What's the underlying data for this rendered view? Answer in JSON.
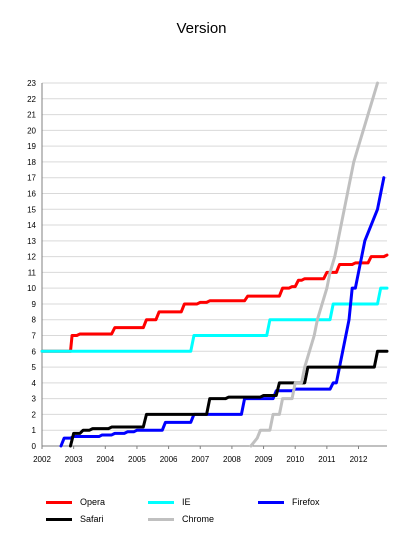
{
  "chart_data": {
    "type": "line",
    "title": "Version",
    "xlabel": "",
    "ylabel": "",
    "xlim": [
      2002,
      2012.9
    ],
    "ylim": [
      0,
      23
    ],
    "x_ticks": [
      "2002",
      "2003",
      "2004",
      "2005",
      "2006",
      "2007",
      "2008",
      "2009",
      "2010",
      "2011",
      "2012"
    ],
    "y_ticks": [
      0,
      1,
      2,
      3,
      4,
      5,
      6,
      7,
      8,
      9,
      10,
      11,
      12,
      13,
      14,
      15,
      16,
      17,
      18,
      19,
      20,
      21,
      22,
      23
    ],
    "grid": "horizontal",
    "legend_position": "bottom",
    "series": [
      {
        "name": "Opera",
        "color": "#ff0000",
        "points": [
          [
            2002.0,
            6.0
          ],
          [
            2002.9,
            6.0
          ],
          [
            2002.95,
            7.0
          ],
          [
            2003.1,
            7.0
          ],
          [
            2003.2,
            7.1
          ],
          [
            2004.2,
            7.1
          ],
          [
            2004.3,
            7.5
          ],
          [
            2005.2,
            7.5
          ],
          [
            2005.3,
            8.0
          ],
          [
            2005.6,
            8.0
          ],
          [
            2005.7,
            8.5
          ],
          [
            2006.4,
            8.5
          ],
          [
            2006.5,
            9.0
          ],
          [
            2006.9,
            9.0
          ],
          [
            2007.0,
            9.1
          ],
          [
            2007.2,
            9.1
          ],
          [
            2007.3,
            9.2
          ],
          [
            2008.4,
            9.2
          ],
          [
            2008.5,
            9.5
          ],
          [
            2009.5,
            9.5
          ],
          [
            2009.6,
            10.0
          ],
          [
            2009.8,
            10.0
          ],
          [
            2009.9,
            10.1
          ],
          [
            2010.0,
            10.1
          ],
          [
            2010.1,
            10.5
          ],
          [
            2010.2,
            10.5
          ],
          [
            2010.3,
            10.6
          ],
          [
            2010.9,
            10.6
          ],
          [
            2011.0,
            11.0
          ],
          [
            2011.3,
            11.0
          ],
          [
            2011.4,
            11.5
          ],
          [
            2011.8,
            11.5
          ],
          [
            2011.9,
            11.6
          ],
          [
            2012.3,
            11.6
          ],
          [
            2012.4,
            12.0
          ],
          [
            2012.8,
            12.0
          ],
          [
            2012.9,
            12.1
          ]
        ]
      },
      {
        "name": "IE",
        "color": "#00ffff",
        "points": [
          [
            2002.0,
            6.0
          ],
          [
            2006.7,
            6.0
          ],
          [
            2006.8,
            7.0
          ],
          [
            2009.1,
            7.0
          ],
          [
            2009.2,
            8.0
          ],
          [
            2011.1,
            8.0
          ],
          [
            2011.2,
            9.0
          ],
          [
            2012.6,
            9.0
          ],
          [
            2012.7,
            10.0
          ],
          [
            2012.9,
            10.0
          ]
        ]
      },
      {
        "name": "Firefox",
        "color": "#0000ff",
        "points": [
          [
            2002.6,
            0.0
          ],
          [
            2002.7,
            0.5
          ],
          [
            2002.9,
            0.5
          ],
          [
            2003.0,
            0.6
          ],
          [
            2003.8,
            0.6
          ],
          [
            2003.9,
            0.7
          ],
          [
            2004.2,
            0.7
          ],
          [
            2004.3,
            0.8
          ],
          [
            2004.6,
            0.8
          ],
          [
            2004.7,
            0.9
          ],
          [
            2004.9,
            0.9
          ],
          [
            2005.0,
            1.0
          ],
          [
            2005.8,
            1.0
          ],
          [
            2005.9,
            1.5
          ],
          [
            2006.7,
            1.5
          ],
          [
            2006.8,
            2.0
          ],
          [
            2008.3,
            2.0
          ],
          [
            2008.4,
            3.0
          ],
          [
            2009.3,
            3.0
          ],
          [
            2009.4,
            3.5
          ],
          [
            2009.9,
            3.5
          ],
          [
            2010.0,
            3.6
          ],
          [
            2011.1,
            3.6
          ],
          [
            2011.2,
            4.0
          ],
          [
            2011.3,
            4.0
          ],
          [
            2011.4,
            5.0
          ],
          [
            2011.5,
            6.0
          ],
          [
            2011.6,
            7.0
          ],
          [
            2011.7,
            8.0
          ],
          [
            2011.8,
            10.0
          ],
          [
            2011.9,
            10.0
          ],
          [
            2012.0,
            11.0
          ],
          [
            2012.1,
            12.0
          ],
          [
            2012.2,
            13.0
          ],
          [
            2012.4,
            14.0
          ],
          [
            2012.6,
            15.0
          ],
          [
            2012.7,
            16.0
          ],
          [
            2012.8,
            17.0
          ]
        ]
      },
      {
        "name": "Safari",
        "color": "#000000",
        "points": [
          [
            2002.9,
            0.0
          ],
          [
            2003.0,
            0.8
          ],
          [
            2003.2,
            0.8
          ],
          [
            2003.3,
            1.0
          ],
          [
            2003.5,
            1.0
          ],
          [
            2003.6,
            1.1
          ],
          [
            2004.1,
            1.1
          ],
          [
            2004.2,
            1.2
          ],
          [
            2005.2,
            1.2
          ],
          [
            2005.3,
            2.0
          ],
          [
            2007.2,
            2.0
          ],
          [
            2007.3,
            3.0
          ],
          [
            2007.8,
            3.0
          ],
          [
            2007.9,
            3.1
          ],
          [
            2008.9,
            3.1
          ],
          [
            2009.0,
            3.2
          ],
          [
            2009.4,
            3.2
          ],
          [
            2009.5,
            4.0
          ],
          [
            2010.3,
            4.0
          ],
          [
            2010.4,
            5.0
          ],
          [
            2012.5,
            5.0
          ],
          [
            2012.6,
            6.0
          ],
          [
            2012.9,
            6.0
          ]
        ]
      },
      {
        "name": "Chrome",
        "color": "#c0c0c0",
        "points": [
          [
            2008.6,
            0.0
          ],
          [
            2008.8,
            0.5
          ],
          [
            2008.9,
            1.0
          ],
          [
            2009.2,
            1.0
          ],
          [
            2009.3,
            2.0
          ],
          [
            2009.5,
            2.0
          ],
          [
            2009.6,
            3.0
          ],
          [
            2009.9,
            3.0
          ],
          [
            2010.0,
            4.0
          ],
          [
            2010.2,
            4.0
          ],
          [
            2010.3,
            5.0
          ],
          [
            2010.45,
            6.0
          ],
          [
            2010.6,
            7.0
          ],
          [
            2010.7,
            8.0
          ],
          [
            2010.85,
            9.0
          ],
          [
            2011.0,
            10.0
          ],
          [
            2011.1,
            11.0
          ],
          [
            2011.25,
            12.0
          ],
          [
            2011.35,
            13.0
          ],
          [
            2011.45,
            14.0
          ],
          [
            2011.55,
            15.0
          ],
          [
            2011.65,
            16.0
          ],
          [
            2011.75,
            17.0
          ],
          [
            2011.85,
            18.0
          ],
          [
            2012.0,
            19.0
          ],
          [
            2012.15,
            20.0
          ],
          [
            2012.3,
            21.0
          ],
          [
            2012.45,
            22.0
          ],
          [
            2012.6,
            23.0
          ]
        ]
      }
    ]
  }
}
